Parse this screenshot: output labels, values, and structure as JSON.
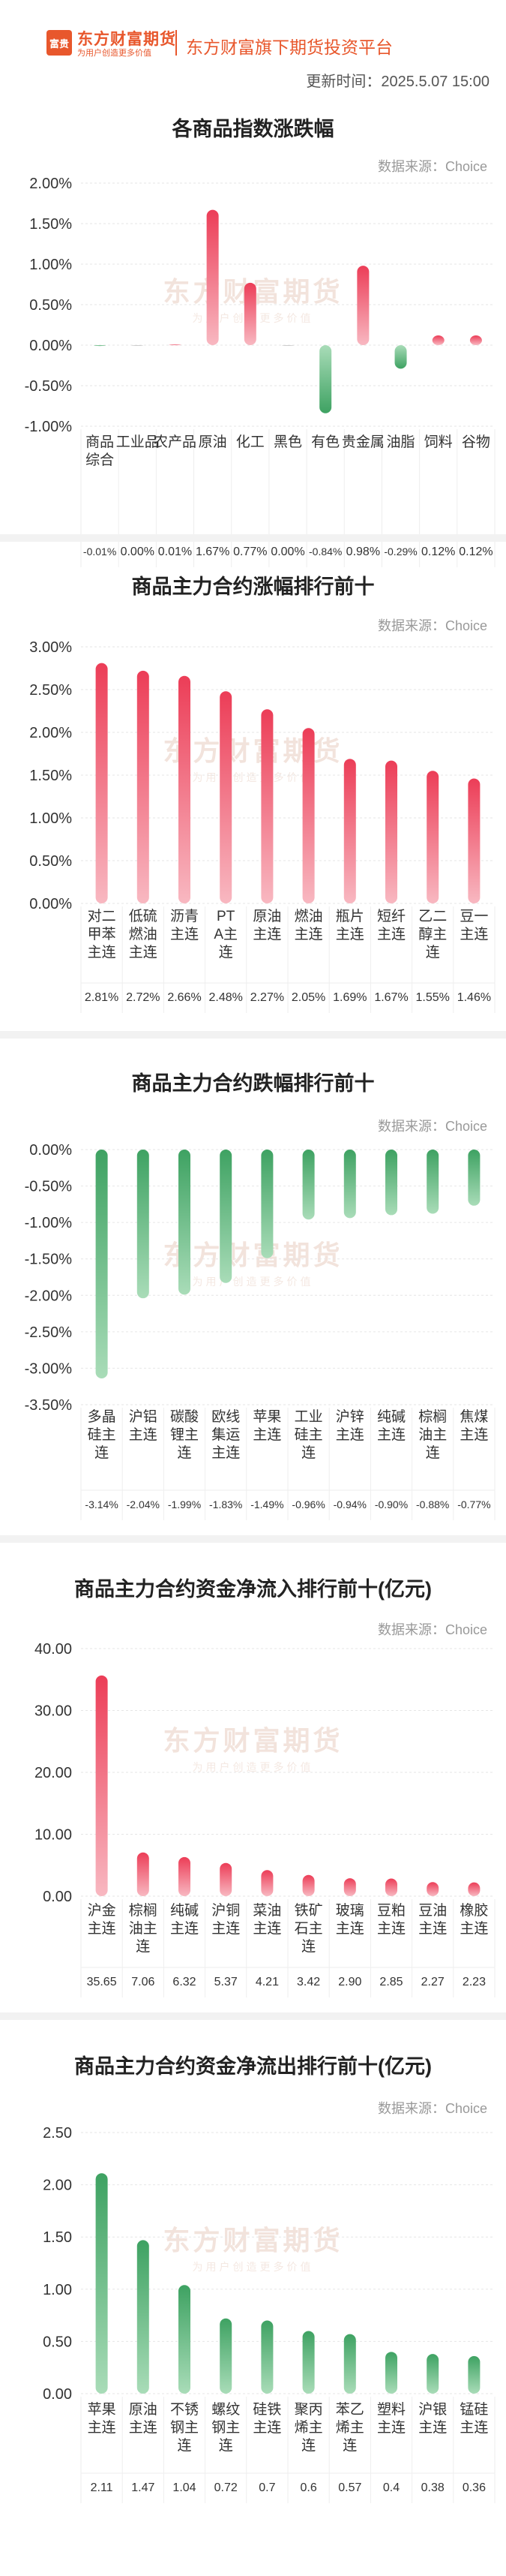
{
  "header": {
    "logo_text": "富贵",
    "brand_name": "东方财富期货",
    "brand_slogan": "为用户创造更多价值",
    "platform_name": "东方财富旗下期货投资平台",
    "update_time": "更新时间：2025.5.07 15:00"
  },
  "watermark": {
    "main": "东方财富期货",
    "sub": "为用户创造更多价值"
  },
  "colors": {
    "up": "#e8455a",
    "down": "#55b072",
    "accent": "#e8572c"
  },
  "chart_data": [
    {
      "type": "bar",
      "title": "各商品指数涨跌幅",
      "source": "数据来源：Choice",
      "categories": [
        "商品综合",
        "工业品",
        "农产品",
        "原油",
        "化工",
        "黑色",
        "有色",
        "贵金属",
        "油脂",
        "饲料",
        "谷物"
      ],
      "values": [
        -0.01,
        0.0,
        0.01,
        1.67,
        0.77,
        0.0,
        -0.84,
        0.98,
        -0.29,
        0.12,
        0.12
      ],
      "value_labels": [
        "-0.01%",
        "0.00%",
        "0.01%",
        "1.67%",
        "0.77%",
        "0.00%",
        "-0.84%",
        "0.98%",
        "-0.29%",
        "0.12%",
        "0.12%"
      ],
      "ylim": [
        -1.0,
        2.0
      ],
      "yticks": [
        2.0,
        1.5,
        1.0,
        0.5,
        0.0,
        -0.5,
        -1.0
      ],
      "ytick_labels": [
        "2.00%",
        "1.50%",
        "1.00%",
        "0.50%",
        "0.00%",
        "-0.50%",
        "-1.00%"
      ]
    },
    {
      "type": "bar",
      "title": "商品主力合约涨幅排行前十",
      "source": "数据来源：Choice",
      "categories": [
        "对二甲苯主连",
        "低硫燃油主连",
        "沥青主连",
        "PTA主连",
        "原油主连",
        "燃油主连",
        "瓶片主连",
        "短纤主连",
        "乙二醇主连",
        "豆一主连"
      ],
      "values": [
        2.81,
        2.72,
        2.66,
        2.48,
        2.27,
        2.05,
        1.69,
        1.67,
        1.55,
        1.46
      ],
      "value_labels": [
        "2.81%",
        "2.72%",
        "2.66%",
        "2.48%",
        "2.27%",
        "2.05%",
        "1.69%",
        "1.67%",
        "1.55%",
        "1.46%"
      ],
      "ylim": [
        0,
        3.0
      ],
      "yticks": [
        3.0,
        2.5,
        2.0,
        1.5,
        1.0,
        0.5,
        0.0
      ],
      "ytick_labels": [
        "3.00%",
        "2.50%",
        "2.00%",
        "1.50%",
        "1.00%",
        "0.50%",
        "0.00%"
      ]
    },
    {
      "type": "bar",
      "title": "商品主力合约跌幅排行前十",
      "source": "数据来源：Choice",
      "categories": [
        "多晶硅主连",
        "沪铝主连",
        "碳酸锂主连",
        "欧线集运主连",
        "苹果主连",
        "工业硅主连",
        "沪锌主连",
        "纯碱主连",
        "棕榈油主连",
        "焦煤主连"
      ],
      "values": [
        -3.14,
        -2.04,
        -1.99,
        -1.83,
        -1.49,
        -0.96,
        -0.94,
        -0.9,
        -0.88,
        -0.77
      ],
      "value_labels": [
        "-3.14%",
        "-2.04%",
        "-1.99%",
        "-1.83%",
        "-1.49%",
        "-0.96%",
        "-0.94%",
        "-0.90%",
        "-0.88%",
        "-0.77%"
      ],
      "ylim": [
        -3.5,
        0
      ],
      "yticks": [
        0.0,
        -0.5,
        -1.0,
        -1.5,
        -2.0,
        -2.5,
        -3.0,
        -3.5
      ],
      "ytick_labels": [
        "0.00%",
        "-0.50%",
        "-1.00%",
        "-1.50%",
        "-2.00%",
        "-2.50%",
        "-3.00%",
        "-3.50%"
      ]
    },
    {
      "type": "bar",
      "title": "商品主力合约资金净流入排行前十(亿元)",
      "source": "数据来源：Choice",
      "categories": [
        "沪金主连",
        "棕榈油主连",
        "纯碱主连",
        "沪铜主连",
        "菜油主连",
        "铁矿石主连",
        "玻璃主连",
        "豆粕主连",
        "豆油主连",
        "橡胶主连"
      ],
      "values": [
        35.65,
        7.06,
        6.32,
        5.37,
        4.21,
        3.42,
        2.9,
        2.85,
        2.27,
        2.23
      ],
      "value_labels": [
        "35.65",
        "7.06",
        "6.32",
        "5.37",
        "4.21",
        "3.42",
        "2.90",
        "2.85",
        "2.27",
        "2.23"
      ],
      "ylim": [
        0,
        40
      ],
      "yticks": [
        40,
        30,
        20,
        10,
        0
      ],
      "ytick_labels": [
        "40.00",
        "30.00",
        "20.00",
        "10.00",
        "0.00"
      ]
    },
    {
      "type": "bar",
      "title": "商品主力合约资金净流出排行前十(亿元)",
      "source": "数据来源：Choice",
      "categories": [
        "苹果主连",
        "原油主连",
        "不锈钢主连",
        "螺纹钢主连",
        "硅铁主连",
        "聚丙烯主连",
        "苯乙烯主连",
        "塑料主连",
        "沪银主连",
        "锰硅主连"
      ],
      "values": [
        2.11,
        1.47,
        1.04,
        0.72,
        0.7,
        0.6,
        0.57,
        0.4,
        0.38,
        0.36
      ],
      "value_labels": [
        "2.11",
        "1.47",
        "1.04",
        "0.72",
        "0.7",
        "0.6",
        "0.57",
        "0.4",
        "0.38",
        "0.36"
      ],
      "ylim": [
        0,
        2.5
      ],
      "yticks": [
        2.5,
        2.0,
        1.5,
        1.0,
        0.5,
        0.0
      ],
      "ytick_labels": [
        "2.50",
        "2.00",
        "1.50",
        "1.00",
        "0.50",
        "0.00"
      ]
    }
  ]
}
